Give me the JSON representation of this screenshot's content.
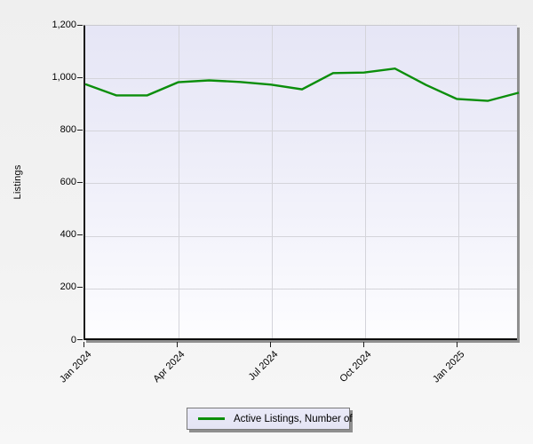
{
  "chart_data": {
    "type": "line",
    "title": "",
    "xlabel": "",
    "ylabel": "Listings",
    "ylim": [
      0,
      1200
    ],
    "grid": true,
    "legend_position": "bottom-center",
    "x": [
      "Jan 2024",
      "Feb 2024",
      "Mar 2024",
      "Apr 2024",
      "May 2024",
      "Jun 2024",
      "Jul 2024",
      "Aug 2024",
      "Sep 2024",
      "Oct 2024",
      "Nov 2024",
      "Dec 2024",
      "Jan 2025",
      "Feb 2025",
      "Mar 2025"
    ],
    "series": [
      {
        "name": "Active Listings, Number of",
        "color": "#0b8e0b",
        "values": [
          978,
          935,
          935,
          985,
          992,
          986,
          976,
          958,
          1020,
          1022,
          1037,
          975,
          921,
          914,
          945
        ]
      }
    ],
    "ytick_labels": [
      "1,200",
      "1,000",
      "800",
      "600",
      "400",
      "200",
      "0"
    ],
    "xtick_labels": [
      "Jan 2024",
      "Apr 2024",
      "Jul 2024",
      "Oct 2024",
      "Jan 2025"
    ]
  },
  "legend": {
    "label": "Active Listings, Number of"
  },
  "yaxis": {
    "title": "Listings"
  },
  "colors": {
    "line": "#0b8e0b",
    "plot_bg_top": "#e6e6f6",
    "plot_bg_bottom": "#fdfdff",
    "gridline": "#d4d4da"
  }
}
